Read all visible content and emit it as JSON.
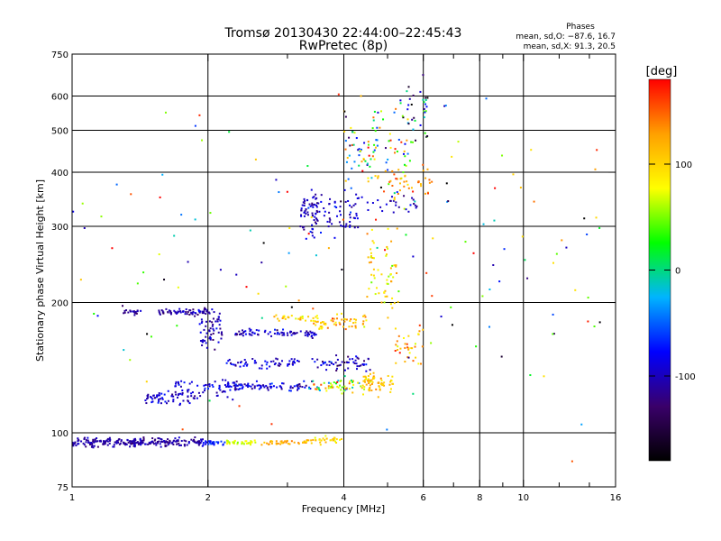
{
  "chart_data": {
    "type": "scatter",
    "title": "Tromsø 20130430 22:44:00–22:45:43",
    "subtitle": "RwPretec (8p)",
    "stats": {
      "heading": "Phases",
      "line_o": "mean, sd,O: −87.6, 16.7",
      "line_x": "mean, sd,X:  91.3, 20.5"
    },
    "xlabel": "Frequency [MHz]",
    "ylabel": "Stationary phase Virtual Height [km]",
    "x_scale": "log",
    "y_scale": "log",
    "xlim": [
      1,
      16
    ],
    "ylim": [
      75,
      750
    ],
    "x_ticks": [
      1,
      2,
      4,
      6,
      8,
      10,
      16
    ],
    "x_tick_labels": [
      "1",
      "2",
      "4",
      "6",
      "8",
      "10",
      "16"
    ],
    "x_minor_ticks": [
      3,
      5,
      7,
      9,
      12,
      14
    ],
    "x_grid": [
      2,
      4,
      6,
      8,
      10
    ],
    "y_ticks": [
      75,
      100,
      200,
      300,
      400,
      500,
      600,
      750
    ],
    "y_tick_labels": [
      "75",
      "100",
      "200",
      "300",
      "400",
      "500",
      "600",
      "750"
    ],
    "y_grid": [
      100,
      200,
      300,
      400,
      500,
      600
    ],
    "grid": true,
    "colorbar": {
      "label": "[deg]",
      "range": [
        -180,
        180
      ],
      "ticks": [
        100,
        0,
        -100
      ],
      "tick_labels": [
        "100",
        "0",
        "-100"
      ],
      "colors": [
        "#000000",
        "#3a006a",
        "#0000ff",
        "#00b4ff",
        "#00ff00",
        "#ffff00",
        "#ffa000",
        "#ff0000"
      ]
    },
    "series": [
      {
        "f_start": 1.0,
        "f_end": 1.95,
        "height": 95,
        "spread": 0.012,
        "phase": -108,
        "phase_sd": 10,
        "count": 240
      },
      {
        "f_start": 1.95,
        "f_end": 2.2,
        "height": 95,
        "spread": 0.006,
        "phase": -70,
        "phase_sd": 10,
        "count": 25
      },
      {
        "f_start": 2.2,
        "f_end": 2.6,
        "height": 95,
        "spread": 0.006,
        "phase": 70,
        "phase_sd": 10,
        "count": 35
      },
      {
        "f_start": 2.6,
        "f_end": 3.3,
        "height": 95,
        "spread": 0.006,
        "phase": 125,
        "phase_sd": 12,
        "count": 35
      },
      {
        "f_start": 3.3,
        "f_end": 4.0,
        "height": 96,
        "spread": 0.01,
        "phase": 100,
        "phase_sd": 15,
        "count": 35
      },
      {
        "f_start": 1.3,
        "f_end": 1.42,
        "height": 190,
        "spread": 0.008,
        "phase": -110,
        "phase_sd": 10,
        "count": 18
      },
      {
        "f_start": 1.55,
        "f_end": 2.05,
        "height": 190,
        "spread": 0.008,
        "phase": -110,
        "phase_sd": 12,
        "count": 65
      },
      {
        "f_start": 1.9,
        "f_end": 2.15,
        "height": 175,
        "spread": 0.05,
        "phase": -105,
        "phase_sd": 15,
        "count": 60
      },
      {
        "f_start": 1.45,
        "f_end": 1.9,
        "height": 120,
        "spread": 0.018,
        "phase": -95,
        "phase_sd": 15,
        "count": 60
      },
      {
        "f_start": 1.65,
        "f_end": 2.3,
        "height": 128,
        "spread": 0.025,
        "phase": -95,
        "phase_sd": 15,
        "count": 55
      },
      {
        "f_start": 2.2,
        "f_end": 3.4,
        "height": 128,
        "spread": 0.012,
        "phase": -90,
        "phase_sd": 18,
        "count": 90
      },
      {
        "f_start": 2.3,
        "f_end": 3.5,
        "height": 170,
        "spread": 0.01,
        "phase": -100,
        "phase_sd": 15,
        "count": 80
      },
      {
        "f_start": 3.4,
        "f_end": 4.5,
        "height": 180,
        "spread": 0.02,
        "phase": 110,
        "phase_sd": 20,
        "count": 60
      },
      {
        "f_start": 2.8,
        "f_end": 3.4,
        "height": 185,
        "spread": 0.01,
        "phase": 100,
        "phase_sd": 20,
        "count": 25
      },
      {
        "f_start": 2.2,
        "f_end": 3.2,
        "height": 145,
        "spread": 0.012,
        "phase": -95,
        "phase_sd": 15,
        "count": 55
      },
      {
        "f_start": 3.4,
        "f_end": 4.6,
        "height": 145,
        "spread": 0.02,
        "phase": -100,
        "phase_sd": 20,
        "count": 55
      },
      {
        "f_start": 3.3,
        "f_end": 4.5,
        "height": 128,
        "spread": 0.02,
        "phase": 60,
        "phase_sd": 60,
        "count": 60
      },
      {
        "f_start": 4.4,
        "f_end": 5.2,
        "height": 130,
        "spread": 0.03,
        "phase": 110,
        "phase_sd": 20,
        "count": 65
      },
      {
        "f_start": 4.5,
        "f_end": 5.3,
        "height": 230,
        "spread": 0.12,
        "phase": 95,
        "phase_sd": 25,
        "count": 60
      },
      {
        "f_start": 5.2,
        "f_end": 6.0,
        "height": 160,
        "spread": 0.05,
        "phase": 110,
        "phase_sd": 30,
        "count": 35
      },
      {
        "f_start": 3.2,
        "f_end": 3.5,
        "height": 320,
        "spread": 0.06,
        "phase": -105,
        "phase_sd": 15,
        "count": 55
      },
      {
        "f_start": 3.5,
        "f_end": 4.3,
        "height": 310,
        "spread": 0.04,
        "phase": -100,
        "phase_sd": 15,
        "count": 35
      },
      {
        "f_start": 3.2,
        "f_end": 5.9,
        "height": 340,
        "spread": 0.03,
        "phase": -95,
        "phase_sd": 15,
        "count": 55
      },
      {
        "f_start": 4.0,
        "f_end": 5.7,
        "height": 440,
        "spread": 0.12,
        "phase": 30,
        "phase_sd": 90,
        "count": 110
      },
      {
        "f_start": 5.3,
        "f_end": 6.2,
        "height": 560,
        "spread": 0.08,
        "phase": -60,
        "phase_sd": 80,
        "count": 35
      },
      {
        "f_start": 5.0,
        "f_end": 6.3,
        "height": 380,
        "spread": 0.05,
        "phase": 130,
        "phase_sd": 20,
        "count": 35
      },
      {
        "f_start": 1.0,
        "f_end": 15.0,
        "height": 250,
        "spread": 0.45,
        "phase": 40,
        "phase_sd": 110,
        "count": 140
      }
    ]
  }
}
